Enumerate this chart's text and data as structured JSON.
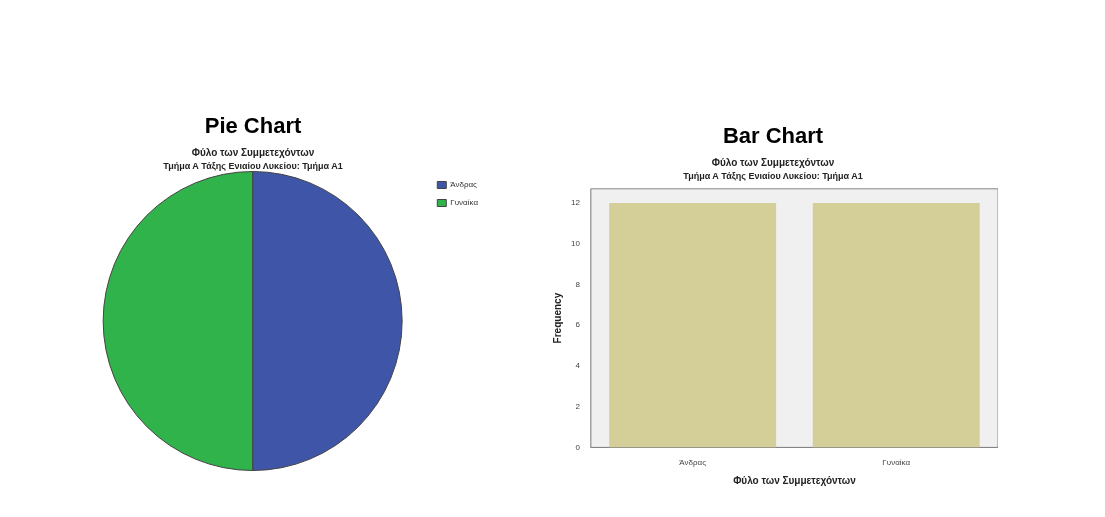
{
  "chart_data": [
    {
      "type": "pie",
      "title": "Pie Chart",
      "subtitle": "Φύλο των Συμμετεχόντων",
      "annotations": [
        "Τμήμα Α Τάξης Ενιαίου Λυκείου: Τμήμα Α1"
      ],
      "categories": [
        "Άνδρας",
        "Γυναίκα"
      ],
      "values": [
        50,
        50
      ],
      "colors": [
        "#3f56a8",
        "#2fb34a"
      ],
      "legend": "top right"
    },
    {
      "type": "bar",
      "title": "Bar Chart",
      "subtitle": "Φύλο των Συμμετεχόντων",
      "annotations": [
        "Τμήμα Α Τάξης Ενιαίου Λυκείου: Τμήμα Α1"
      ],
      "categories": [
        "Άνδρας",
        "Γυναίκα"
      ],
      "values": [
        12,
        12
      ],
      "color": "#d4cf98",
      "xlabel": "Φύλο των Συμμετεχόντων",
      "ylabel": "Frequency",
      "ylim": [
        0,
        12.7
      ],
      "yticks": [
        0,
        2,
        4,
        6,
        8,
        10,
        12
      ],
      "grid": false,
      "legend": false
    }
  ]
}
